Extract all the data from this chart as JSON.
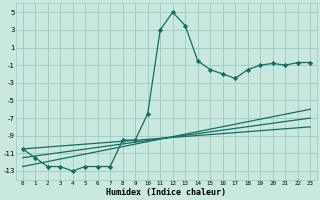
{
  "xlabel": "Humidex (Indice chaleur)",
  "ylabel": "",
  "background_color": "#c8e8e0",
  "grid_color": "#9cc8c0",
  "line_color": "#1a6b60",
  "xlim": [
    -0.5,
    23.5
  ],
  "ylim": [
    -14,
    6
  ],
  "yticks": [
    5,
    3,
    1,
    -1,
    -3,
    -5,
    -7,
    -9,
    -11,
    -13
  ],
  "xticks": [
    0,
    1,
    2,
    3,
    4,
    5,
    6,
    7,
    8,
    9,
    10,
    11,
    12,
    13,
    14,
    15,
    16,
    17,
    18,
    19,
    20,
    21,
    22,
    23
  ],
  "data_x": [
    0,
    1,
    2,
    3,
    4,
    5,
    6,
    7,
    8,
    9,
    10,
    11,
    12,
    13,
    14,
    15,
    16,
    17,
    18,
    19,
    20,
    21,
    22,
    23
  ],
  "data_y": [
    -10.5,
    -11.5,
    -12.5,
    -12.5,
    -13.0,
    -12.5,
    -12.5,
    -12.5,
    -9.5,
    -9.5,
    -6.5,
    3.0,
    5.0,
    3.5,
    -0.5,
    -1.5,
    -2.0,
    -2.5,
    -1.5,
    -1.0,
    -0.8,
    -1.0,
    -0.7,
    -0.7
  ],
  "trend1_x": [
    0,
    23
  ],
  "trend1_y": [
    -12.5,
    -6.0
  ],
  "trend2_x": [
    0,
    23
  ],
  "trend2_y": [
    -11.5,
    -7.0
  ],
  "trend3_x": [
    0,
    23
  ],
  "trend3_y": [
    -10.5,
    -8.0
  ]
}
